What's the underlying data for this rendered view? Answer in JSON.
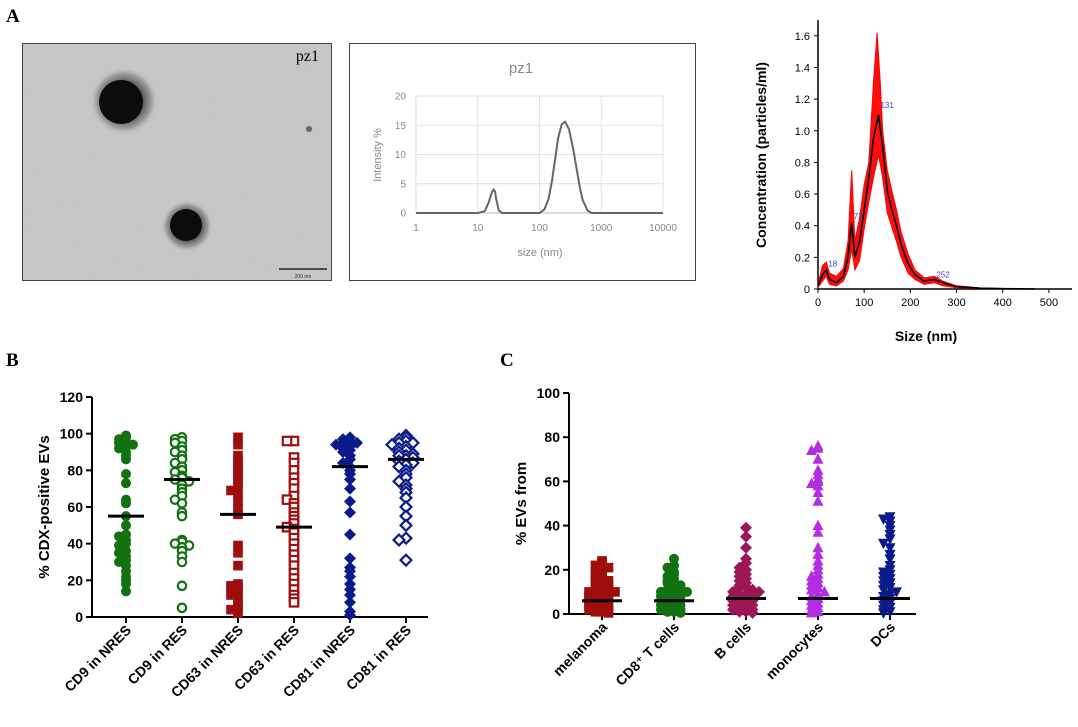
{
  "panel_letters": {
    "a": "A",
    "b": "B",
    "c": "C"
  },
  "tem": {
    "label": "pz1",
    "scale_bar_text": "200 nm"
  },
  "chart_data": [
    {
      "id": "dls",
      "type": "line",
      "title": "pz1",
      "xlabel": "size (nm)",
      "ylabel": "Intensity %",
      "x_scale": "log",
      "xlim": [
        1,
        10000
      ],
      "ylim": [
        0,
        20
      ],
      "xticks": [
        "1",
        "10",
        "100",
        "1000",
        "10000"
      ],
      "yticks": [
        "0",
        "5",
        "10",
        "15",
        "20"
      ],
      "grid": true,
      "series": [
        {
          "color": "#666666",
          "x": [
            1,
            10,
            13,
            15,
            17,
            18,
            19,
            20,
            22,
            25,
            100,
            120,
            140,
            160,
            180,
            200,
            230,
            260,
            300,
            350,
            400,
            450,
            500,
            600,
            700,
            10000
          ],
          "y": [
            0,
            0,
            0.3,
            1.8,
            3.6,
            4.0,
            3.7,
            2.3,
            0.4,
            0,
            0,
            0.6,
            2.4,
            5.6,
            9.4,
            12.8,
            15.2,
            15.6,
            14.3,
            11.0,
            7.5,
            4.4,
            2.2,
            0.4,
            0,
            0
          ]
        }
      ]
    },
    {
      "id": "nta",
      "type": "line",
      "xlabel": "Size (nm)",
      "ylabel": "Concentration (particles/ml)",
      "xlim": [
        0,
        550
      ],
      "ylim": [
        0,
        1.7
      ],
      "xticks": [
        "0",
        "100",
        "200",
        "300",
        "400",
        "500"
      ],
      "yticks": [
        "0",
        "0.2",
        "0.4",
        "0.6",
        "0.8",
        "1.0",
        "1.2",
        "1.4",
        "1.6"
      ],
      "peak_labels": [
        {
          "x": 18,
          "y": 0.13,
          "text": "18"
        },
        {
          "x": 73,
          "y": 0.43,
          "text": "73"
        },
        {
          "x": 131,
          "y": 1.13,
          "text": "131"
        },
        {
          "x": 252,
          "y": 0.06,
          "text": "252"
        }
      ],
      "series": [
        {
          "name": "mean",
          "color": "#000000",
          "x": [
            0,
            10,
            18,
            25,
            40,
            55,
            65,
            73,
            80,
            90,
            100,
            110,
            120,
            131,
            140,
            150,
            160,
            170,
            180,
            195,
            210,
            230,
            252,
            270,
            300,
            350,
            400,
            470
          ],
          "y": [
            0.02,
            0.09,
            0.12,
            0.06,
            0.04,
            0.08,
            0.2,
            0.42,
            0.2,
            0.3,
            0.5,
            0.7,
            0.95,
            1.1,
            0.9,
            0.62,
            0.5,
            0.4,
            0.28,
            0.16,
            0.09,
            0.05,
            0.06,
            0.04,
            0.015,
            0.005,
            0.002,
            0
          ]
        },
        {
          "name": "upper",
          "color": "#ff0000",
          "x": [
            0,
            10,
            18,
            25,
            40,
            55,
            65,
            73,
            80,
            90,
            100,
            110,
            120,
            128,
            135,
            140,
            150,
            160,
            170,
            180,
            195,
            210,
            230,
            252,
            270,
            300,
            350,
            400,
            470
          ],
          "y": [
            0.03,
            0.15,
            0.17,
            0.1,
            0.08,
            0.13,
            0.3,
            0.75,
            0.3,
            0.45,
            0.66,
            0.8,
            1.3,
            1.62,
            1.3,
            1.0,
            0.75,
            0.62,
            0.5,
            0.36,
            0.22,
            0.12,
            0.07,
            0.08,
            0.05,
            0.02,
            0.007,
            0.003,
            0
          ]
        },
        {
          "name": "lower",
          "color": "#ff0000",
          "x": [
            0,
            10,
            18,
            25,
            40,
            55,
            65,
            73,
            80,
            90,
            100,
            110,
            120,
            131,
            140,
            150,
            160,
            170,
            180,
            195,
            210,
            230,
            252,
            270,
            300,
            350,
            400,
            470
          ],
          "y": [
            0.01,
            0.05,
            0.08,
            0.03,
            0.02,
            0.05,
            0.12,
            0.25,
            0.12,
            0.18,
            0.38,
            0.55,
            0.7,
            0.85,
            0.7,
            0.48,
            0.39,
            0.3,
            0.2,
            0.1,
            0.06,
            0.03,
            0.04,
            0.02,
            0.008,
            0.003,
            0.001,
            0
          ]
        }
      ]
    },
    {
      "id": "panelB",
      "type": "scatter",
      "ylabel": "% CDX-positive EVs",
      "ylim": [
        0,
        120
      ],
      "yticks": [
        "0",
        "20",
        "40",
        "60",
        "80",
        "100",
        "120"
      ],
      "categories": [
        "CD9 in NRES",
        "CD9 in RES",
        "CD63 in NRES",
        "CD63 in RES",
        "CD81 in NRES",
        "CD81 in RES"
      ],
      "groups": [
        {
          "color": "#127212",
          "marker": "circle",
          "filled": true,
          "mean": 55,
          "values": [
            99,
            98,
            97,
            96,
            95,
            94,
            93,
            92,
            90,
            88,
            86,
            78,
            73,
            64,
            62,
            55,
            50,
            45,
            44,
            42,
            40,
            39,
            36,
            35,
            33,
            31,
            30,
            28,
            25,
            22,
            20,
            18,
            14
          ]
        },
        {
          "color": "#127212",
          "marker": "circle",
          "filled": false,
          "mean": 75,
          "values": [
            98,
            97,
            96,
            95,
            93,
            91,
            90,
            88,
            86,
            84,
            82,
            80,
            79,
            77,
            76,
            75,
            74,
            72,
            70,
            68,
            66,
            64,
            62,
            57,
            55,
            42,
            41,
            40,
            39,
            38,
            36,
            33,
            30,
            17,
            5
          ]
        },
        {
          "color": "#a00d0d",
          "marker": "square",
          "filled": true,
          "mean": 56,
          "values": [
            98,
            94,
            88,
            85,
            82,
            80,
            78,
            76,
            73,
            71,
            69,
            66,
            63,
            59,
            56,
            39,
            35,
            28,
            18,
            17,
            16,
            15,
            13,
            12,
            10,
            7,
            5,
            4,
            2
          ]
        },
        {
          "color": "#a00d0d",
          "marker": "square",
          "filled": false,
          "mean": 49,
          "values": [
            96,
            96,
            87,
            84,
            80,
            76,
            73,
            70,
            66,
            64,
            62,
            60,
            57,
            55,
            53,
            51,
            49,
            48,
            46,
            43,
            40,
            37,
            34,
            31,
            28,
            24,
            21,
            18,
            15,
            12,
            10,
            8
          ]
        },
        {
          "color": "#0a1a8a",
          "marker": "diamond",
          "filled": true,
          "mean": 82,
          "values": [
            98,
            97,
            96,
            95,
            95,
            94,
            93,
            92,
            91,
            90,
            88,
            86,
            84,
            82,
            80,
            78,
            75,
            70,
            63,
            57,
            45,
            32,
            27,
            25,
            22,
            18,
            15,
            12,
            8,
            3,
            1
          ]
        },
        {
          "color": "#0a1a8a",
          "marker": "diamond",
          "filled": false,
          "mean": 86,
          "values": [
            99,
            98,
            97,
            96,
            95,
            95,
            94,
            93,
            92,
            91,
            90,
            89,
            88,
            88,
            87,
            86,
            85,
            84,
            83,
            82,
            80,
            78,
            76,
            74,
            72,
            70,
            68,
            65,
            60,
            55,
            50,
            43,
            42,
            31
          ]
        }
      ]
    },
    {
      "id": "panelC",
      "type": "scatter",
      "ylabel": "% EVs from",
      "ylim": [
        0,
        100
      ],
      "yticks": [
        "0",
        "20",
        "40",
        "60",
        "80",
        "100"
      ],
      "categories": [
        "melanoma",
        "CD8⁺ T cells",
        "B cells",
        "monocytes",
        "DCs"
      ],
      "groups": [
        {
          "color": "#a00d0d",
          "marker": "square",
          "mean": 6,
          "values": [
            24,
            23,
            22,
            21,
            20,
            19,
            18,
            17,
            16,
            16,
            15,
            14,
            14,
            13,
            12,
            12,
            11,
            10,
            10,
            9,
            9,
            8,
            8,
            7,
            7,
            6,
            6,
            5,
            5,
            4,
            4,
            3,
            3,
            2,
            2,
            1,
            1,
            0.5
          ]
        },
        {
          "color": "#127212",
          "marker": "circle",
          "mean": 6,
          "values": [
            25,
            22,
            21,
            19,
            18,
            17,
            16,
            15,
            14,
            14,
            13,
            12,
            11,
            11,
            10,
            10,
            9,
            9,
            8,
            8,
            7,
            7,
            6,
            6,
            5,
            5,
            4,
            4,
            3,
            3,
            2,
            2,
            1,
            1,
            0.5
          ]
        },
        {
          "color": "#9c1656",
          "marker": "diamond",
          "mean": 7,
          "values": [
            39,
            35,
            30,
            25,
            23,
            21,
            20,
            19,
            18,
            17,
            16,
            15,
            14,
            13,
            12,
            12,
            11,
            10,
            10,
            9,
            9,
            8,
            8,
            7,
            7,
            6,
            6,
            5,
            5,
            4,
            4,
            3,
            3,
            2,
            2,
            1,
            1,
            0.5
          ]
        },
        {
          "color": "#b32ee0",
          "marker": "triangle-up",
          "mean": 7,
          "values": [
            76,
            75,
            74,
            70,
            65,
            63,
            61,
            60,
            59,
            58,
            55,
            51,
            40,
            37,
            30,
            27,
            24,
            22,
            20,
            18,
            17,
            16,
            15,
            14,
            13,
            12,
            11,
            10,
            9,
            8,
            7,
            6,
            5,
            4,
            3,
            2,
            1,
            0.5
          ]
        },
        {
          "color": "#0a1a8a",
          "marker": "triangle-down",
          "mean": 7,
          "values": [
            44,
            43,
            42,
            40,
            38,
            36,
            34,
            32,
            30,
            27,
            25,
            22,
            20,
            19,
            18,
            17,
            16,
            15,
            14,
            13,
            12,
            11,
            10,
            9,
            8,
            7,
            6,
            5,
            4,
            3,
            2,
            1,
            0.5
          ]
        }
      ]
    }
  ]
}
